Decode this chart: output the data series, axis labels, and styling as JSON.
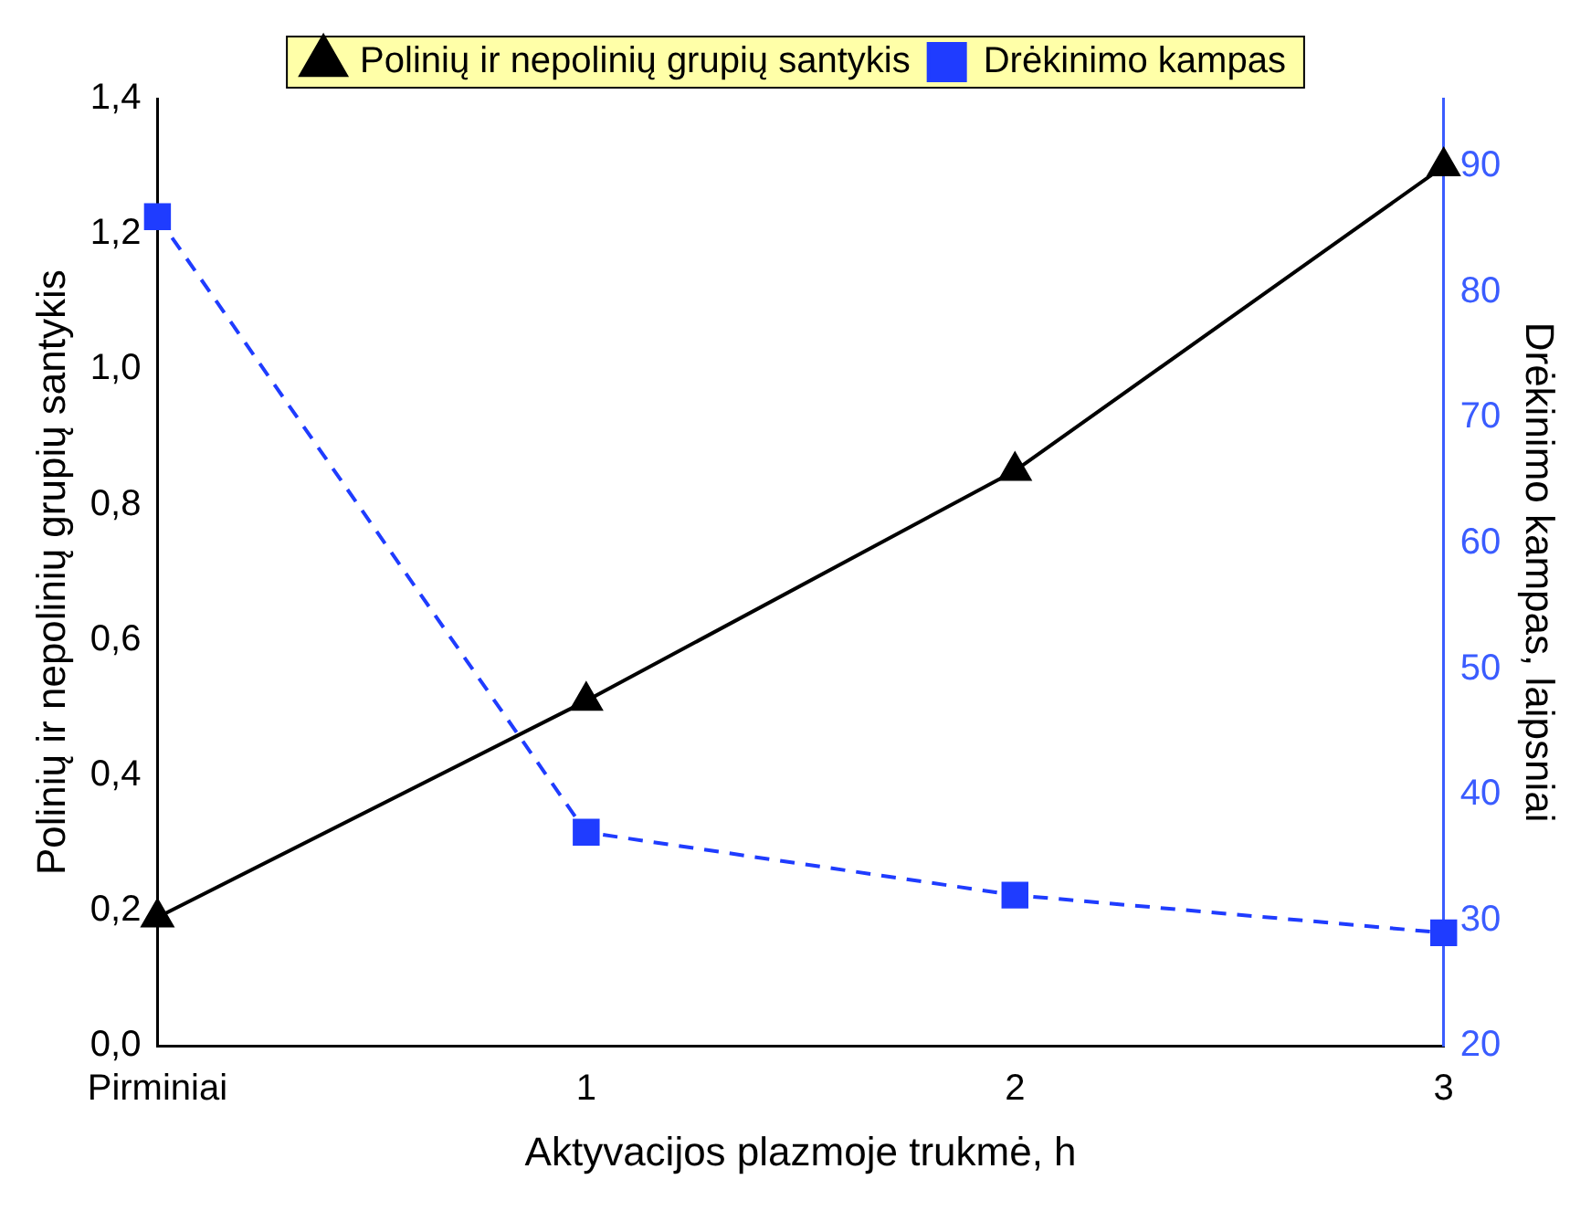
{
  "chart_data": {
    "type": "line",
    "xlabel": "Aktyvacijos plazmoje trukmė, h",
    "ylabel": "Polinių ir nepolinių grupių santykis",
    "y2label": "Drėkinimo kampas, laipsniai",
    "categories": [
      "Pirminiai",
      "1",
      "2",
      "3"
    ],
    "series": [
      {
        "name": "Polinių ir nepolinių grupių santykis",
        "color": "#000000",
        "values": [
          0.19,
          0.51,
          0.85,
          1.3
        ],
        "marker": "triangle",
        "line_style": "solid"
      },
      {
        "name": "Drėkinimo kampas",
        "color": "#1f3cff",
        "values": [
          86,
          37,
          32,
          29
        ],
        "axis": "y2",
        "marker": "square",
        "line_style": "dashed"
      }
    ],
    "ylim": [
      0,
      1.4
    ],
    "yticks": [
      {
        "value": 0,
        "label": "0,0"
      },
      {
        "value": 0.2,
        "label": "0,2"
      },
      {
        "value": 0.4,
        "label": "0,4"
      },
      {
        "value": 0.6,
        "label": "0,6"
      },
      {
        "value": 0.8,
        "label": "0,8"
      },
      {
        "value": 1,
        "label": "1,0"
      },
      {
        "value": 1.2,
        "label": "1,2"
      },
      {
        "value": 1.4,
        "label": "1,4"
      }
    ],
    "y2lim": [
      20,
      95.4
    ],
    "y2ticks": [
      20,
      30,
      40,
      50,
      60,
      70,
      80,
      90
    ],
    "legend": "top",
    "grid": false
  }
}
